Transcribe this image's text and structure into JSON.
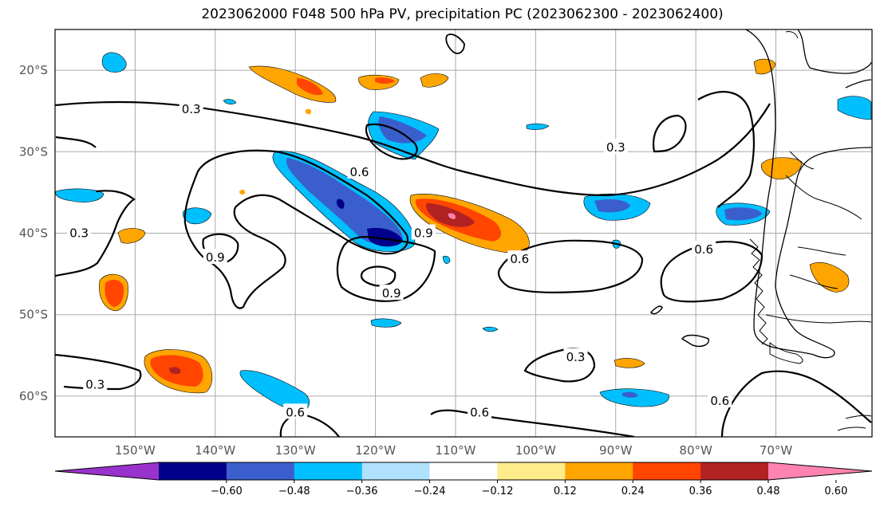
{
  "title": "2023062000 F048 500 hPa PV, precipitation PC (2023062300 - 2023062400)",
  "map": {
    "lon_range": [
      -160,
      -58
    ],
    "lat_range": [
      -65,
      -15
    ],
    "lon_ticks": [
      {
        "lon": -150,
        "label": "150°W"
      },
      {
        "lon": -140,
        "label": "140°W"
      },
      {
        "lon": -130,
        "label": "130°W"
      },
      {
        "lon": -120,
        "label": "120°W"
      },
      {
        "lon": -110,
        "label": "110°W"
      },
      {
        "lon": -100,
        "label": "100°W"
      },
      {
        "lon": -90,
        "label": "90°W"
      },
      {
        "lon": -80,
        "label": "80°W"
      },
      {
        "lon": -70,
        "label": "70°W"
      }
    ],
    "lat_ticks": [
      {
        "lat": -20,
        "label": "20°S"
      },
      {
        "lat": -30,
        "label": "30°S"
      },
      {
        "lat": -40,
        "label": "40°S"
      },
      {
        "lat": -50,
        "label": "50°S"
      },
      {
        "lat": -60,
        "label": "60°S"
      }
    ],
    "contour_labels": [
      {
        "text": "0.3",
        "lon": -143,
        "lat": -24.8
      },
      {
        "text": "0.6",
        "lon": -122,
        "lat": -32.5
      },
      {
        "text": "0.3",
        "lon": -90,
        "lat": -29.5
      },
      {
        "text": "0.3",
        "lon": -157,
        "lat": -40.0
      },
      {
        "text": "0.9",
        "lon": -140,
        "lat": -43.0
      },
      {
        "text": "0.9",
        "lon": -114,
        "lat": -40.0
      },
      {
        "text": "0.6",
        "lon": -102,
        "lat": -43.2
      },
      {
        "text": "0.6",
        "lon": -79,
        "lat": -42.0
      },
      {
        "text": "0.9",
        "lon": -118,
        "lat": -47.4
      },
      {
        "text": "0.3",
        "lon": -95,
        "lat": -55.2
      },
      {
        "text": "0.3",
        "lon": -155,
        "lat": -58.6
      },
      {
        "text": "0.6",
        "lon": -130,
        "lat": -62.0
      },
      {
        "text": "0.6",
        "lon": -107,
        "lat": -62.0
      },
      {
        "text": "0.6",
        "lon": -77,
        "lat": -60.6
      }
    ]
  },
  "colorbar": {
    "colors": [
      "#9932cc",
      "#00008b",
      "#3a5fcd",
      "#00bfff",
      "#b0e2ff",
      "#ffffff",
      "#ffec8b",
      "#ffa500",
      "#ff4500",
      "#b22222",
      "#ff83b0"
    ],
    "labels": [
      "−0.60",
      "−0.48",
      "−0.36",
      "−0.24",
      "−0.12",
      "0.12",
      "0.24",
      "0.36",
      "0.48",
      "0.60"
    ]
  }
}
